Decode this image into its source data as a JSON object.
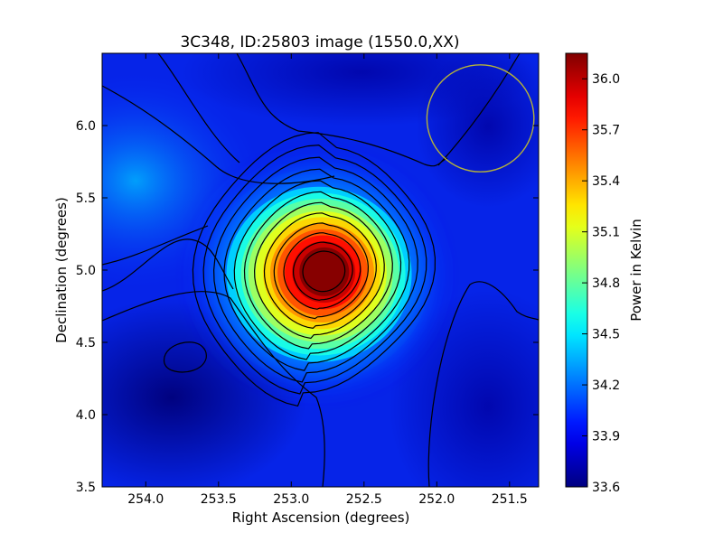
{
  "chart_data": {
    "type": "heatmap",
    "title": "3C348, ID:25803 image (1550.0,XX)",
    "xlabel": "Right Ascension (degrees)",
    "ylabel": "Declination (degrees)",
    "xlim": [
      254.3,
      251.3
    ],
    "ylim": [
      3.5,
      6.5
    ],
    "x_ticks": [
      254.0,
      253.5,
      253.0,
      252.5,
      252.0,
      251.5
    ],
    "x_tick_labels": [
      "254.0",
      "253.5",
      "253.0",
      "252.5",
      "252.0",
      "251.5"
    ],
    "y_ticks": [
      3.5,
      4.0,
      4.5,
      5.0,
      5.5,
      6.0
    ],
    "y_tick_labels": [
      "3.5",
      "4.0",
      "4.5",
      "5.0",
      "5.5",
      "6.0"
    ],
    "colorbar": {
      "label": "Power in Kelvin",
      "range": [
        33.6,
        36.15
      ],
      "ticks": [
        33.6,
        33.9,
        34.2,
        34.5,
        34.8,
        35.1,
        35.4,
        35.7,
        36.0
      ],
      "tick_labels": [
        "33.6",
        "33.9",
        "34.2",
        "34.5",
        "34.8",
        "35.1",
        "35.4",
        "35.7",
        "36.0"
      ],
      "colormap": "jet"
    },
    "peak": {
      "ra": 252.77,
      "dec": 4.99,
      "value": 36.15
    },
    "beam_circle": {
      "ra": 251.7,
      "dec": 6.05,
      "radius_deg": 0.37,
      "color": "#b5b23a"
    },
    "contour_color": "#000000"
  }
}
